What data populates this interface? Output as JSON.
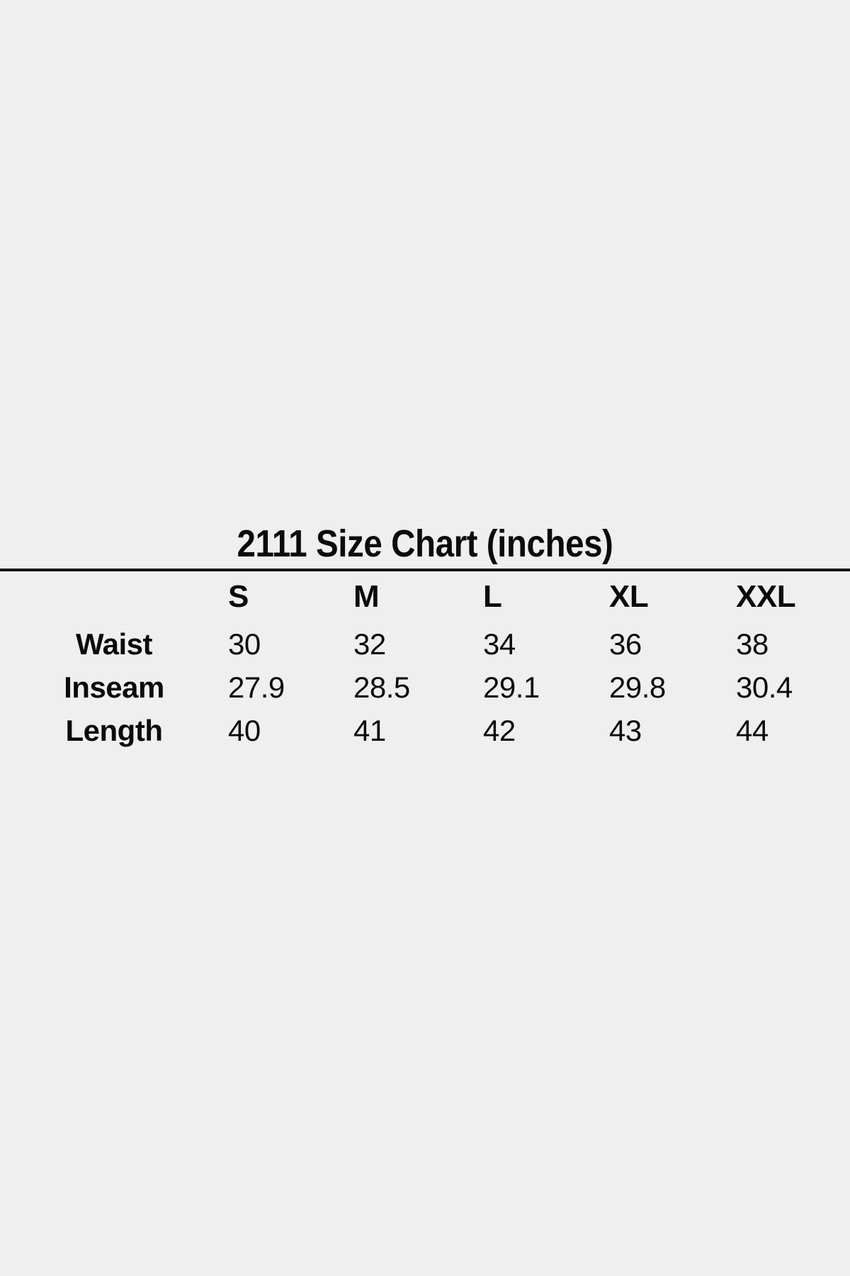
{
  "page": {
    "background_color": "#efefef",
    "text_color": "#0b0b0b",
    "divider_color": "#141414"
  },
  "chart_data": {
    "type": "table",
    "title": "2111 Size Chart (inches)",
    "column_headers": [
      "S",
      "M",
      "L",
      "XL",
      "XXL"
    ],
    "row_headers": [
      "Waist",
      "Inseam",
      "Length"
    ],
    "rows": [
      [
        30,
        32,
        34,
        36,
        38
      ],
      [
        27.9,
        28.5,
        29.1,
        29.8,
        30.4
      ],
      [
        40,
        41,
        42,
        43,
        44
      ]
    ]
  }
}
